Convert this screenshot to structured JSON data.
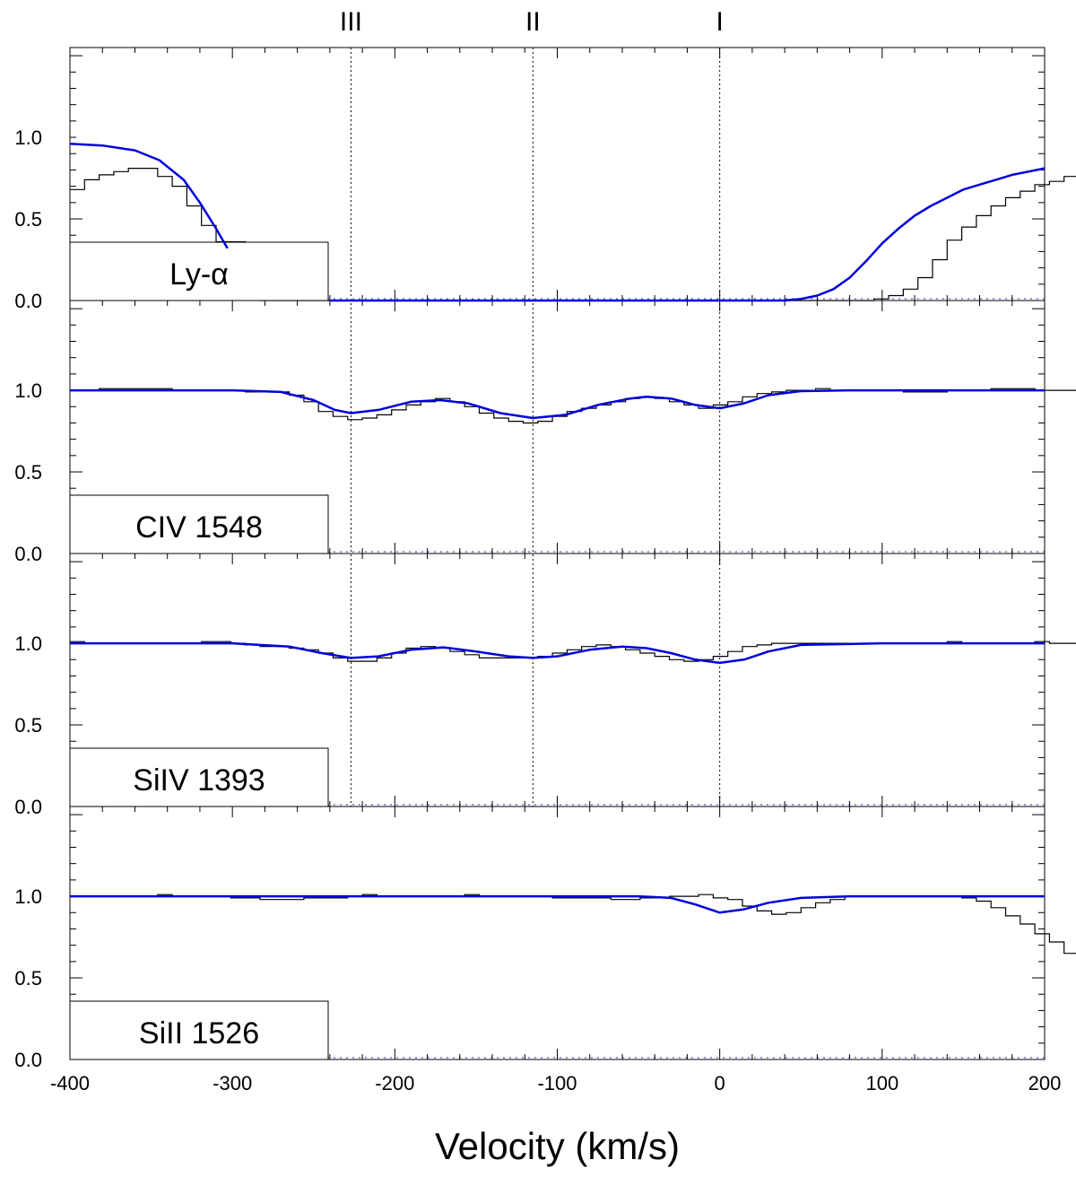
{
  "chart_data": {
    "type": "line",
    "xlabel": "Velocity (km/s)",
    "xlim": [
      -400,
      200
    ],
    "x_ticks": [
      "-400",
      "-300",
      "-200",
      "-100",
      "0",
      "100",
      "200"
    ],
    "y_ticks": [
      "0.0",
      "0.5",
      "1.0"
    ],
    "ylim": [
      0,
      1.55
    ],
    "components": [
      {
        "label": "III",
        "velocity": -227
      },
      {
        "label": "II",
        "velocity": -115
      },
      {
        "label": "I",
        "velocity": 0
      }
    ],
    "colors": {
      "model": "#0000dd",
      "data": "#000000",
      "zero_line": "#3333cc"
    },
    "panels": [
      {
        "name": "Ly-α",
        "data_step": {
          "start": -400,
          "step": 9,
          "values": [
            0.68,
            0.74,
            0.77,
            0.79,
            0.81,
            0.81,
            0.76,
            0.7,
            0.58,
            0.46,
            0.36,
            0.36,
            0.05,
            0.0,
            0.0,
            0.0,
            0.0,
            0.0,
            0.0,
            0.0,
            0.0,
            0.0,
            0.0,
            0.0,
            0.0,
            0.0,
            0.0,
            0.0,
            0.0,
            0.0,
            0.0,
            0.0,
            0.0,
            0.0,
            0.0,
            0.0,
            0.0,
            0.0,
            0.0,
            0.0,
            0.0,
            0.0,
            0.0,
            0.0,
            0.0,
            0.0,
            0.0,
            0.0,
            0.0,
            0.0,
            0.0,
            0.0,
            0.0,
            0.0,
            0.0,
            0.01,
            0.03,
            0.07,
            0.14,
            0.25,
            0.37,
            0.45,
            0.52,
            0.58,
            0.63,
            0.67,
            0.71,
            0.73,
            0.76,
            0.79,
            0.83,
            0.81
          ]
        },
        "model": {
          "x": [
            -400,
            -380,
            -360,
            -345,
            -330,
            -320,
            -310,
            -303,
            -240,
            -40,
            40,
            50,
            60,
            70,
            80,
            90,
            100,
            110,
            120,
            130,
            140,
            150,
            160,
            170,
            180,
            190,
            200
          ],
          "y": [
            0.96,
            0.95,
            0.92,
            0.86,
            0.74,
            0.6,
            0.44,
            0.32,
            0.0,
            0.0,
            0.0,
            0.01,
            0.03,
            0.07,
            0.14,
            0.24,
            0.35,
            0.44,
            0.52,
            0.58,
            0.63,
            0.68,
            0.71,
            0.74,
            0.77,
            0.79,
            0.81
          ]
        },
        "model_segments": [
          [
            0,
            7
          ],
          [
            8,
            26
          ]
        ]
      },
      {
        "name": "CIV 1548",
        "data_step": {
          "start": -400,
          "step": 9,
          "values": [
            1.0,
            1.0,
            1.01,
            1.01,
            1.01,
            1.01,
            1.01,
            1.0,
            1.0,
            1.0,
            1.0,
            1.0,
            0.99,
            0.99,
            0.99,
            0.97,
            0.93,
            0.87,
            0.84,
            0.82,
            0.83,
            0.85,
            0.88,
            0.91,
            0.93,
            0.95,
            0.93,
            0.9,
            0.86,
            0.83,
            0.81,
            0.8,
            0.81,
            0.84,
            0.87,
            0.89,
            0.91,
            0.93,
            0.95,
            0.96,
            0.95,
            0.93,
            0.91,
            0.89,
            0.91,
            0.93,
            0.96,
            0.98,
            0.99,
            1.0,
            1.0,
            1.01,
            1.0,
            1.0,
            1.0,
            1.0,
            1.0,
            0.99,
            0.99,
            0.99,
            1.0,
            1.0,
            1.0,
            1.01,
            1.01,
            1.01,
            1.0,
            1.0,
            1.0,
            1.0,
            1.0,
            1.0
          ]
        },
        "model": {
          "x": [
            -400,
            -300,
            -270,
            -250,
            -237,
            -227,
            -210,
            -190,
            -172,
            -155,
            -135,
            -115,
            -95,
            -75,
            -55,
            -45,
            -30,
            -15,
            0,
            15,
            30,
            50,
            80,
            120,
            200
          ],
          "y": [
            1.0,
            1.0,
            0.99,
            0.94,
            0.88,
            0.86,
            0.88,
            0.93,
            0.94,
            0.92,
            0.86,
            0.83,
            0.85,
            0.91,
            0.95,
            0.96,
            0.95,
            0.91,
            0.89,
            0.92,
            0.97,
            0.995,
            1.0,
            1.0,
            1.0
          ]
        },
        "model_segments": [
          [
            0,
            24
          ]
        ]
      },
      {
        "name": "SiIV 1393",
        "data_step": {
          "start": -400,
          "step": 9,
          "values": [
            1.01,
            1.0,
            1.0,
            1.0,
            1.0,
            1.0,
            1.0,
            1.0,
            1.0,
            1.01,
            1.01,
            1.0,
            0.99,
            0.98,
            0.98,
            0.97,
            0.96,
            0.94,
            0.91,
            0.89,
            0.89,
            0.91,
            0.94,
            0.97,
            0.98,
            0.97,
            0.95,
            0.93,
            0.91,
            0.91,
            0.91,
            0.91,
            0.92,
            0.94,
            0.96,
            0.98,
            0.99,
            0.98,
            0.96,
            0.94,
            0.92,
            0.9,
            0.89,
            0.9,
            0.92,
            0.95,
            0.98,
            0.99,
            1.0,
            1.0,
            1.0,
            1.0,
            1.0,
            1.0,
            1.0,
            1.0,
            1.0,
            1.0,
            1.0,
            1.0,
            1.01,
            1.0,
            1.0,
            1.0,
            1.0,
            1.0,
            1.01,
            1.0,
            1.0,
            1.0,
            1.0,
            1.01
          ]
        },
        "model": {
          "x": [
            -400,
            -300,
            -265,
            -245,
            -227,
            -210,
            -190,
            -170,
            -150,
            -130,
            -115,
            -100,
            -80,
            -60,
            -45,
            -30,
            -15,
            0,
            15,
            30,
            50,
            100,
            200
          ],
          "y": [
            1.0,
            1.0,
            0.98,
            0.94,
            0.91,
            0.92,
            0.96,
            0.975,
            0.95,
            0.92,
            0.91,
            0.92,
            0.96,
            0.98,
            0.97,
            0.94,
            0.9,
            0.88,
            0.9,
            0.95,
            0.99,
            1.0,
            1.0
          ]
        },
        "model_segments": [
          [
            0,
            22
          ]
        ]
      },
      {
        "name": "SiII 1526",
        "data_step": {
          "start": -400,
          "step": 9,
          "values": [
            1.0,
            1.0,
            1.0,
            1.0,
            1.0,
            1.0,
            1.01,
            1.0,
            1.0,
            1.0,
            1.0,
            0.99,
            0.99,
            0.98,
            0.98,
            0.98,
            0.99,
            0.99,
            0.99,
            1.0,
            1.01,
            1.0,
            1.0,
            1.0,
            1.0,
            1.0,
            1.0,
            1.01,
            1.0,
            1.0,
            1.0,
            1.0,
            1.0,
            0.99,
            0.99,
            0.99,
            0.99,
            0.98,
            0.98,
            0.99,
            0.99,
            1.0,
            1.0,
            1.01,
            0.99,
            0.98,
            0.94,
            0.91,
            0.89,
            0.9,
            0.93,
            0.96,
            0.98,
            1.0,
            1.0,
            1.0,
            1.0,
            1.0,
            1.0,
            1.0,
            1.0,
            0.99,
            0.97,
            0.93,
            0.88,
            0.83,
            0.77,
            0.72,
            0.65,
            0.58,
            0.5,
            0.4
          ]
        },
        "model": {
          "x": [
            -400,
            -100,
            -50,
            -30,
            -15,
            0,
            15,
            30,
            50,
            80,
            200
          ],
          "y": [
            1.0,
            1.0,
            1.0,
            0.99,
            0.95,
            0.9,
            0.92,
            0.96,
            0.99,
            1.0,
            1.0
          ]
        },
        "model_segments": [
          [
            0,
            10
          ]
        ]
      }
    ]
  }
}
